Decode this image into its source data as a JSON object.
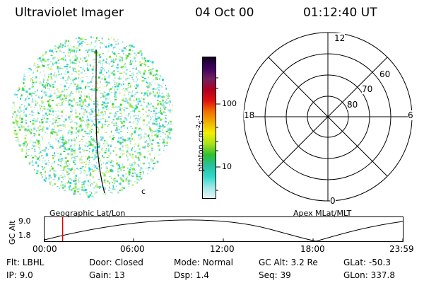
{
  "header": {
    "instrument": "Ultraviolet Imager",
    "date": "04 Oct 00",
    "time": "01:12:40 UT"
  },
  "image_panel": {
    "corner_glyph": "c",
    "dot_colors": [
      "#1fd8cc",
      "#7fe3e0",
      "#3bd23b",
      "#8ee82a",
      "#b8e6e0",
      "#55c8e6",
      "#d4f08a"
    ]
  },
  "colorbar": {
    "unit_label": "photon cm",
    "unit_exp1": "-2",
    "unit_mid": "s",
    "unit_exp2": "-1",
    "ticks": [
      "100",
      "10"
    ],
    "stops": [
      "#e8f4f4",
      "#9fe8e8",
      "#30d8c8",
      "#28c0a0",
      "#30c030",
      "#a8e020",
      "#f0f000",
      "#f0b000",
      "#f07000",
      "#e01010",
      "#b00020",
      "#702060",
      "#400060",
      "#100020"
    ]
  },
  "polar_plot": {
    "mlt_labels": {
      "top": "12",
      "left": "18",
      "right": "6",
      "bottom": "0"
    },
    "lat_labels": [
      "60",
      "70",
      "80"
    ]
  },
  "orbit_plot": {
    "ylabel": "GC Alt",
    "yticks": [
      "9.0",
      "1.8"
    ],
    "left_title": "Geographic Lat/Lon",
    "right_title": "Apex MLat/MLT",
    "xticks": [
      "00:00",
      "06:00",
      "12:00",
      "18:00",
      "23:59"
    ],
    "current_time_marker": "01:12:40",
    "marker_color": "#e00000"
  },
  "info": {
    "row1": [
      {
        "key": "Flt:",
        "val": "LBHL"
      },
      {
        "key": "Door:",
        "val": "Closed"
      },
      {
        "key": "Mode:",
        "val": "Normal"
      },
      {
        "key": "GC Alt:",
        "val": "3.2 Re"
      },
      {
        "key": "GLat:",
        "val": "-50.3"
      }
    ],
    "row2": [
      {
        "key": "IP:",
        "val": "9.0"
      },
      {
        "key": "Gain:",
        "val": "13"
      },
      {
        "key": "Dsp:",
        "val": "1.4"
      },
      {
        "key": "Seq:",
        "val": "39"
      },
      {
        "key": "GLon:",
        "val": "337.8"
      }
    ]
  }
}
